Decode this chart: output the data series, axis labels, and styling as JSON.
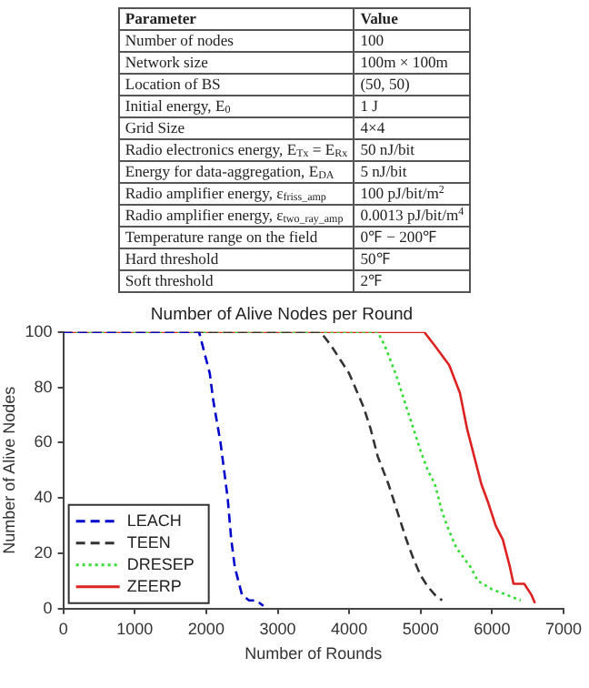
{
  "chart_data": [
    {
      "type": "other",
      "annotations": [
        "Parameter",
        "Value",
        "Number of nodes",
        "100",
        "Network size",
        "100m × 100m",
        "Location of BS",
        "(50, 50)",
        "Initial energy, E$_{0}$",
        "1 J",
        "Grid Size",
        "4×4",
        "Radio electronics energy, E$_{Tx}$ = E$_{Rx}$",
        "50 nJ/bit",
        "Energy for data-aggregation, E$_{DA}$",
        "5 nJ/bit",
        "Radio amplifier energy, ε$_{friss_amp}$",
        "100 pJ/bit/m$^{2}$",
        "Radio amplifier energy, ε$_{two_ray_amp}$",
        "0.0013 pJ/bit/m$^{4}$",
        "Temperature range on the field",
        "0℉ − 200℉",
        "Hard threshold",
        "50℉",
        "Soft threshold",
        "2℉"
      ]
    },
    {
      "type": "line",
      "title": "Number of Alive Nodes per Round",
      "xlabel": "Number of Rounds",
      "ylabel": "Number of Alive Nodes",
      "xlim": [
        0,
        7000
      ],
      "xticks": [
        0,
        1000,
        2000,
        3000,
        4000,
        5000,
        6000,
        7000
      ],
      "ylim": [
        0,
        100
      ],
      "yticks": [
        0,
        20,
        40,
        60,
        80,
        100
      ],
      "grid": false,
      "legend": "bottom left",
      "marker": "none",
      "series": [
        {
          "name": "LEACH",
          "color": "#0000cc",
          "line_style": "dashed",
          "x": [
            0,
            1900,
            1950,
            2050,
            2100,
            2200,
            2300,
            2350,
            2400,
            2500,
            2600,
            2700,
            2800
          ],
          "values": [
            100,
            100,
            95,
            85,
            75,
            60,
            40,
            25,
            15,
            5,
            3,
            3,
            1
          ]
        },
        {
          "name": "TEEN",
          "color": "#333333",
          "line_style": "dashed",
          "x": [
            0,
            3600,
            3750,
            4000,
            4200,
            4300,
            4400,
            4550,
            4700,
            4800,
            4900,
            5000,
            5100,
            5200,
            5300
          ],
          "values": [
            100,
            100,
            95,
            85,
            73,
            65,
            55,
            45,
            33,
            25,
            18,
            12,
            8,
            5,
            3
          ]
        },
        {
          "name": "DRESEP",
          "color": "#33dd33",
          "line_style": "dotted",
          "x": [
            0,
            4400,
            4500,
            4650,
            4750,
            4900,
            5000,
            5100,
            5200,
            5300,
            5400,
            5500,
            5700,
            5800,
            6000,
            6200,
            6400
          ],
          "values": [
            100,
            100,
            95,
            85,
            77,
            65,
            57,
            50,
            45,
            35,
            28,
            22,
            15,
            10,
            7,
            5,
            3
          ]
        },
        {
          "name": "ZEERP",
          "color": "#dd2222",
          "line_style": "solid",
          "x": [
            0,
            5050,
            5200,
            5400,
            5550,
            5650,
            5750,
            5850,
            5950,
            6050,
            6150,
            6250,
            6300,
            6450,
            6550,
            6600
          ],
          "values": [
            100,
            100,
            95,
            88,
            78,
            65,
            55,
            45,
            38,
            30,
            25,
            15,
            9,
            9,
            5,
            2
          ]
        }
      ]
    }
  ]
}
